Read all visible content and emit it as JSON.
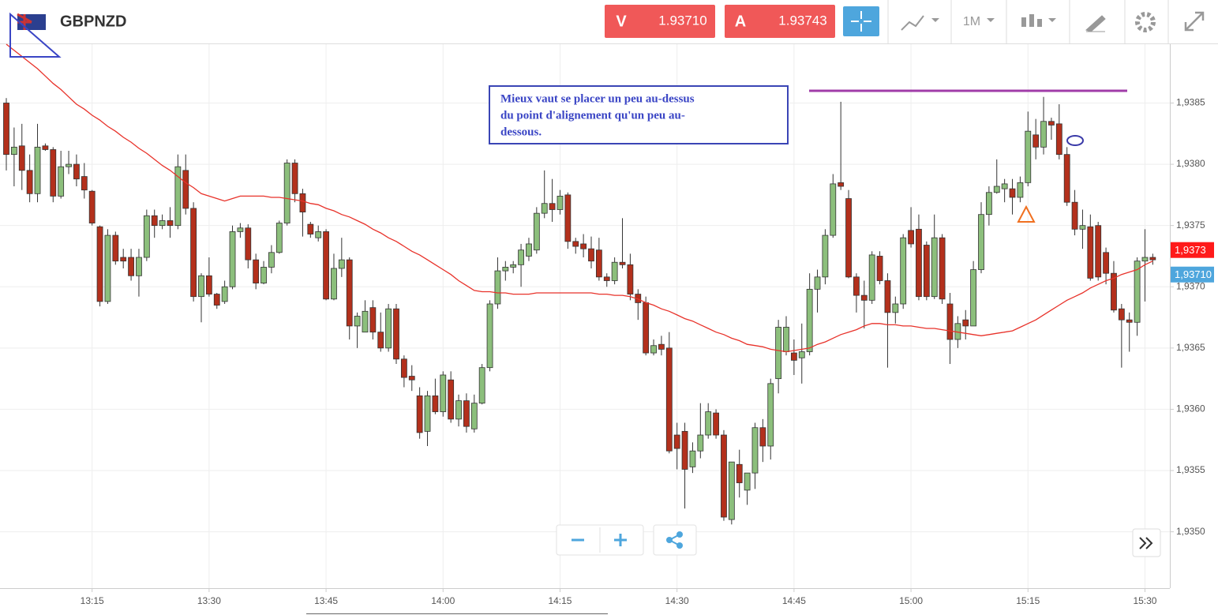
{
  "header": {
    "symbol": "GBPNZD",
    "sell_label": "V",
    "sell_price": "1.93710",
    "buy_label": "A",
    "buy_price": "1.93743",
    "timeframe": "1M"
  },
  "chart_data": {
    "type": "candlestick",
    "annotation": [
      "Mieux vaut se placer un peu au-dessus",
      "du point d'alignement qu'un peu au-",
      "dessous."
    ],
    "categories": [
      null,
      null,
      null,
      null,
      null,
      null,
      null,
      null,
      null,
      null,
      null,
      "13:15",
      null,
      null,
      null,
      null,
      null,
      null,
      null,
      null,
      null,
      null,
      null,
      null,
      null,
      null,
      "13:30",
      null,
      null,
      null,
      null,
      null,
      null,
      null,
      null,
      null,
      null,
      null,
      null,
      null,
      null,
      "13:45",
      null,
      null,
      null,
      null,
      null,
      null,
      null,
      null,
      null,
      null,
      null,
      null,
      null,
      null,
      "14:00",
      null,
      null,
      null,
      null,
      null,
      null,
      null,
      null,
      null,
      null,
      null,
      null,
      null,
      null,
      "14:15",
      null,
      null,
      null,
      null,
      null,
      null,
      null,
      null,
      null,
      null,
      null,
      null,
      null,
      null,
      "14:30",
      null,
      null,
      null,
      null,
      null,
      null,
      null,
      null,
      null,
      null,
      null,
      null,
      null,
      null,
      "14:45",
      null,
      null,
      null,
      null,
      null,
      null,
      null,
      null,
      null,
      null,
      null,
      null,
      null,
      null,
      "15:00",
      null,
      null,
      null,
      null,
      null,
      null,
      null,
      null,
      null,
      null,
      null,
      null,
      null,
      null,
      "15:15",
      null,
      null,
      null,
      null,
      null,
      null,
      null,
      null,
      null,
      null,
      null,
      null,
      null,
      null,
      "15:30",
      null
    ],
    "open": [
      1.9385,
      1.93808,
      1.93815,
      1.93795,
      1.93776,
      1.93815,
      1.93812,
      1.93774,
      1.93798,
      1.938,
      1.9379,
      1.93778,
      1.93749,
      1.93688,
      1.93742,
      1.93724,
      1.93724,
      1.93709,
      1.93724,
      1.93758,
      1.9375,
      1.93754,
      1.9375,
      1.93795,
      1.93764,
      1.93692,
      1.93709,
      1.93694,
      1.93688,
      1.937,
      1.93745,
      1.93748,
      1.93722,
      1.93703,
      1.93716,
      1.93728,
      1.93752,
      1.93801,
      1.93776,
      1.93751,
      1.9374,
      1.93745,
      1.9369,
      1.93715,
      1.93722,
      1.93668,
      1.93663,
      1.93683,
      1.93663,
      1.9365,
      1.93682,
      1.93641,
      1.93627,
      1.93611,
      1.93582,
      1.93611,
      1.93598,
      1.93624,
      1.93592,
      1.93607,
      1.93584,
      1.93605,
      1.93634,
      1.93686,
      1.93713,
      1.93716,
      1.93718,
      1.93725,
      1.9373,
      1.9376,
      1.93768,
      1.93763,
      1.93775,
      1.93737,
      1.93735,
      1.93731,
      1.9373,
      1.93708,
      1.93705,
      1.9372,
      1.93718,
      1.93694,
      1.93687,
      1.93646,
      1.93653,
      1.9365,
      1.93579,
      1.93582,
      1.93553,
      1.93566,
      1.93579,
      1.93597,
      1.93579,
      1.9351,
      1.93555,
      1.93534,
      1.93548,
      1.93585,
      1.9357,
      1.93625,
      1.93647,
      1.93646,
      1.93642,
      1.93647,
      1.93698,
      1.93708,
      1.93742,
      1.93785,
      1.93772,
      1.93708,
      1.93693,
      1.93689,
      1.93725,
      1.93705,
      1.93679,
      1.93686,
      1.93746,
      1.93747,
      1.93734,
      1.93692,
      1.9374,
      1.93686,
      1.93657,
      1.93673,
      1.93668,
      1.93714,
      1.93759,
      1.93777,
      1.9378,
      1.9378,
      1.93773,
      1.93785,
      1.93824,
      1.93814,
      1.93835,
      1.93833,
      1.93808,
      1.93769,
      1.93747,
      1.93749,
      1.9375,
      1.93728,
      1.93711,
      1.93682,
      1.93673,
      1.93671,
      1.93721,
      1.93724
    ],
    "high": [
      1.93854,
      1.9383,
      1.93833,
      1.93808,
      1.93833,
      1.93817,
      1.93814,
      1.93811,
      1.93811,
      1.93808,
      1.93801,
      1.93779,
      1.9375,
      1.93747,
      1.93745,
      1.93731,
      1.93731,
      1.93731,
      1.93763,
      1.93763,
      1.93759,
      1.93765,
      1.93808,
      1.93808,
      1.93769,
      1.93711,
      1.93724,
      1.93695,
      1.93705,
      1.9375,
      1.93752,
      1.93751,
      1.93727,
      1.93721,
      1.93734,
      1.93754,
      1.93804,
      1.93804,
      1.9378,
      1.93753,
      1.9375,
      1.93747,
      1.93727,
      1.9374,
      1.93724,
      1.93679,
      1.93689,
      1.93689,
      1.93679,
      1.93686,
      1.93686,
      1.93644,
      1.93636,
      1.93618,
      1.93615,
      1.93625,
      1.93631,
      1.93631,
      1.93612,
      1.93613,
      1.93612,
      1.93637,
      1.93689,
      1.93724,
      1.93721,
      1.93721,
      1.93735,
      1.9374,
      1.93765,
      1.93795,
      1.93788,
      1.93779,
      1.93777,
      1.9374,
      1.93743,
      1.93741,
      1.9374,
      1.93711,
      1.93724,
      1.93756,
      1.93727,
      1.93698,
      1.93692,
      1.93657,
      1.9366,
      1.93663,
      1.93589,
      1.93589,
      1.93573,
      1.93605,
      1.93605,
      1.936,
      1.93583,
      1.93557,
      1.93567,
      1.93548,
      1.93589,
      1.93592,
      1.93625,
      1.93673,
      1.93676,
      1.93657,
      1.9367,
      1.93711,
      1.93714,
      1.93747,
      1.93792,
      1.93851,
      1.93779,
      1.93711,
      1.93705,
      1.93729,
      1.93729,
      1.93711,
      1.93692,
      1.93743,
      1.93765,
      1.93759,
      1.93737,
      1.93759,
      1.93743,
      1.93695,
      1.93676,
      1.93681,
      1.93721,
      1.93769,
      1.93782,
      1.93804,
      1.93788,
      1.93788,
      1.9379,
      1.93843,
      1.93837,
      1.93855,
      1.93838,
      1.93849,
      1.93814,
      1.93779,
      1.93763,
      1.93759,
      1.93753,
      1.93732,
      1.93721,
      1.93686,
      1.93679,
      1.93724,
      1.93747,
      1.93727
    ],
    "low": [
      1.93795,
      1.93782,
      1.93779,
      1.93769,
      1.93769,
      1.93811,
      1.93769,
      1.93772,
      1.93792,
      1.93782,
      1.93772,
      1.9375,
      1.93684,
      1.93686,
      1.93718,
      1.93715,
      1.93705,
      1.93692,
      1.93721,
      1.9374,
      1.93747,
      1.9374,
      1.93747,
      1.93759,
      1.93688,
      1.93671,
      1.93692,
      1.93682,
      1.93686,
      1.93698,
      1.9374,
      1.93715,
      1.93698,
      1.93702,
      1.93711,
      1.93727,
      1.9375,
      1.93769,
      1.93741,
      1.9374,
      1.93737,
      1.93689,
      1.93689,
      1.93708,
      1.93657,
      1.9365,
      1.93663,
      1.93657,
      1.93647,
      1.93647,
      1.93637,
      1.93618,
      1.93615,
      1.93576,
      1.9357,
      1.93596,
      1.93594,
      1.93589,
      1.93586,
      1.93581,
      1.93581,
      1.93604,
      1.93631,
      1.93682,
      1.93705,
      1.93711,
      1.937,
      1.93721,
      1.93727,
      1.93756,
      1.93753,
      1.93759,
      1.93731,
      1.93727,
      1.93724,
      1.93715,
      1.93705,
      1.937,
      1.93702,
      1.93715,
      1.93689,
      1.93673,
      1.93644,
      1.93644,
      1.93644,
      1.93564,
      1.93551,
      1.93519,
      1.93548,
      1.9356,
      1.93576,
      1.93576,
      1.93509,
      1.93506,
      1.93528,
      1.93522,
      1.93535,
      1.93557,
      1.93559,
      1.93613,
      1.93644,
      1.93628,
      1.93621,
      1.93644,
      1.93679,
      1.93702,
      1.9374,
      1.93779,
      1.93707,
      1.93679,
      1.93666,
      1.93686,
      1.93702,
      1.93634,
      1.9367,
      1.93682,
      1.93732,
      1.93689,
      1.93689,
      1.9369,
      1.93686,
      1.93637,
      1.9365,
      1.93657,
      1.9367,
      1.93711,
      1.9375,
      1.93776,
      1.93769,
      1.93759,
      1.93769,
      1.93782,
      1.93804,
      1.93808,
      1.9382,
      1.93804,
      1.93766,
      1.93742,
      1.93731,
      1.93705,
      1.93705,
      1.93702,
      1.93679,
      1.93634,
      1.93647,
      1.9366,
      1.93688,
      1.93718
    ],
    "close": [
      1.93808,
      1.93814,
      1.93795,
      1.93776,
      1.93814,
      1.93812,
      1.93774,
      1.93798,
      1.938,
      1.93788,
      1.93779,
      1.93752,
      1.93688,
      1.93742,
      1.93721,
      1.93721,
      1.93709,
      1.93724,
      1.93758,
      1.9375,
      1.93754,
      1.9375,
      1.93798,
      1.93764,
      1.93692,
      1.93709,
      1.93694,
      1.93685,
      1.937,
      1.93745,
      1.93748,
      1.93722,
      1.93703,
      1.93716,
      1.93728,
      1.93752,
      1.93801,
      1.93776,
      1.93761,
      1.93743,
      1.93745,
      1.9369,
      1.93715,
      1.93722,
      1.93668,
      1.93676,
      1.9368,
      1.93663,
      1.9365,
      1.93682,
      1.93641,
      1.93626,
      1.93624,
      1.93581,
      1.93611,
      1.93598,
      1.93628,
      1.93592,
      1.93607,
      1.93586,
      1.93605,
      1.93634,
      1.93686,
      1.93713,
      1.93716,
      1.93718,
      1.9373,
      1.93735,
      1.9376,
      1.93768,
      1.93763,
      1.93774,
      1.93737,
      1.93733,
      1.93731,
      1.93721,
      1.93708,
      1.93705,
      1.9372,
      1.93718,
      1.93694,
      1.93687,
      1.93646,
      1.93652,
      1.93649,
      1.93566,
      1.93568,
      1.93551,
      1.93566,
      1.93579,
      1.93598,
      1.93579,
      1.93512,
      1.93557,
      1.9354,
      1.93548,
      1.93585,
      1.9357,
      1.93621,
      1.93667,
      1.93667,
      1.9364,
      1.93647,
      1.93698,
      1.93708,
      1.93742,
      1.93784,
      1.93782,
      1.93708,
      1.93693,
      1.93689,
      1.93726,
      1.93705,
      1.93679,
      1.93686,
      1.9374,
      1.93735,
      1.93692,
      1.93692,
      1.9374,
      1.9369,
      1.93657,
      1.9367,
      1.93668,
      1.93714,
      1.93759,
      1.93777,
      1.93782,
      1.93784,
      1.93773,
      1.93785,
      1.93827,
      1.93814,
      1.93835,
      1.93832,
      1.93808,
      1.93769,
      1.93747,
      1.9375,
      1.93707,
      1.93708,
      1.93711,
      1.93681,
      1.93673,
      1.93671,
      1.93721,
      1.93724,
      1.93722
    ],
    "up_color": "#8cbf7c",
    "down_color": "#b3301c",
    "ma": {
      "color": "#e8322a",
      "values": [
        1.93898,
        1.93893,
        1.93888,
        1.93883,
        1.93878,
        1.93872,
        1.93866,
        1.93861,
        1.93855,
        1.93849,
        1.93845,
        1.9384,
        1.93836,
        1.93831,
        1.93827,
        1.93822,
        1.93818,
        1.93813,
        1.93809,
        1.93804,
        1.93799,
        1.93795,
        1.9379,
        1.93785,
        1.93781,
        1.93776,
        1.93774,
        1.93772,
        1.9377,
        1.93772,
        1.93774,
        1.93774,
        1.93774,
        1.93774,
        1.93773,
        1.93773,
        1.93772,
        1.93771,
        1.9377,
        1.93768,
        1.93767,
        1.93764,
        1.93762,
        1.93759,
        1.93757,
        1.93754,
        1.93751,
        1.93747,
        1.93744,
        1.9374,
        1.93737,
        1.93733,
        1.93729,
        1.93726,
        1.93722,
        1.93718,
        1.93714,
        1.9371,
        1.93705,
        1.93701,
        1.93697,
        1.93696,
        1.93696,
        1.93695,
        1.93695,
        1.93694,
        1.93694,
        1.93694,
        1.93695,
        1.93695,
        1.93695,
        1.93695,
        1.93695,
        1.93695,
        1.93695,
        1.93695,
        1.93694,
        1.93694,
        1.93693,
        1.93693,
        1.93692,
        1.9369,
        1.93687,
        1.93685,
        1.93682,
        1.9368,
        1.93677,
        1.93674,
        1.93672,
        1.93669,
        1.93666,
        1.93663,
        1.93661,
        1.93658,
        1.93656,
        1.93653,
        1.93652,
        1.93651,
        1.93649,
        1.93648,
        1.93647,
        1.93648,
        1.93649,
        1.9365,
        1.93653,
        1.93655,
        1.93658,
        1.93661,
        1.93663,
        1.93665,
        1.93668,
        1.9367,
        1.9367,
        1.93669,
        1.93669,
        1.93668,
        1.93668,
        1.93667,
        1.93666,
        1.93666,
        1.93665,
        1.93664,
        1.93663,
        1.93662,
        1.93661,
        1.9366,
        1.93661,
        1.93662,
        1.93663,
        1.93664,
        1.93667,
        1.9367,
        1.93673,
        1.93677,
        1.93681,
        1.93685,
        1.93689,
        1.93692,
        1.93695,
        1.93699,
        1.93702,
        1.93705,
        1.93707,
        1.9371,
        1.93712,
        1.93714,
        1.93718,
        1.93721
      ]
    },
    "ylim": [
      1.93454,
      1.93898
    ],
    "yticks": [
      {
        "value": 1.9385,
        "label": "1,9385"
      },
      {
        "value": 1.938,
        "label": "1,9380"
      },
      {
        "value": 1.9375,
        "label": "1,9375"
      },
      {
        "value": 1.937,
        "label": "1,9370"
      },
      {
        "value": 1.9365,
        "label": "1,9365"
      },
      {
        "value": 1.936,
        "label": "1,9360"
      },
      {
        "value": 1.9355,
        "label": "1,9355"
      },
      {
        "value": 1.935,
        "label": "1,9350"
      }
    ],
    "grid": true,
    "price_tags": [
      {
        "value": 1.9373,
        "label": "1,9373",
        "color": "#ff1a1a"
      },
      {
        "value": 1.9371,
        "label": "1,93710",
        "color": "#4ea6dd"
      }
    ]
  }
}
